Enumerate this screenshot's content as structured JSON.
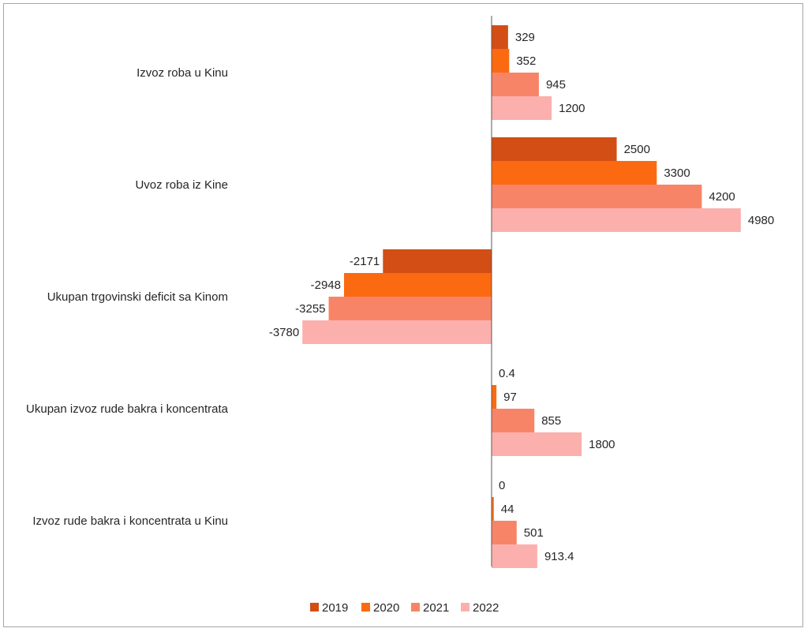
{
  "chart_data": {
    "type": "bar",
    "orientation": "horizontal",
    "categories": [
      "Izvoz roba u Kinu",
      "Uvoz roba iz Kine",
      "Ukupan trgovinski deficit sa Kinom",
      "Ukupan izvoz rude bakra i koncentrata",
      "Izvoz rude bakra i koncentrata u Kinu"
    ],
    "series": [
      {
        "name": "2019",
        "color": "#d24e14",
        "values": [
          329,
          2500,
          -2171,
          0.4,
          0
        ]
      },
      {
        "name": "2020",
        "color": "#fb6a11",
        "values": [
          352,
          3300,
          -2948,
          97,
          44
        ]
      },
      {
        "name": "2021",
        "color": "#f88468",
        "values": [
          945,
          4200,
          -3255,
          855,
          501
        ]
      },
      {
        "name": "2022",
        "color": "#fbb0ad",
        "values": [
          1200,
          4980,
          -3780,
          1800,
          913.4
        ]
      }
    ],
    "value_labels": [
      [
        "329",
        "2500",
        "-2171",
        "0.4",
        "0"
      ],
      [
        "352",
        "3300",
        "-2948",
        "97",
        "44"
      ],
      [
        "945",
        "4200",
        "-3255",
        "855",
        "501"
      ],
      [
        "1200",
        "4980",
        "-3780",
        "1800",
        "913.4"
      ]
    ],
    "xlim": [
      -3780,
      4980
    ],
    "grid": false,
    "legend_position": "bottom"
  }
}
